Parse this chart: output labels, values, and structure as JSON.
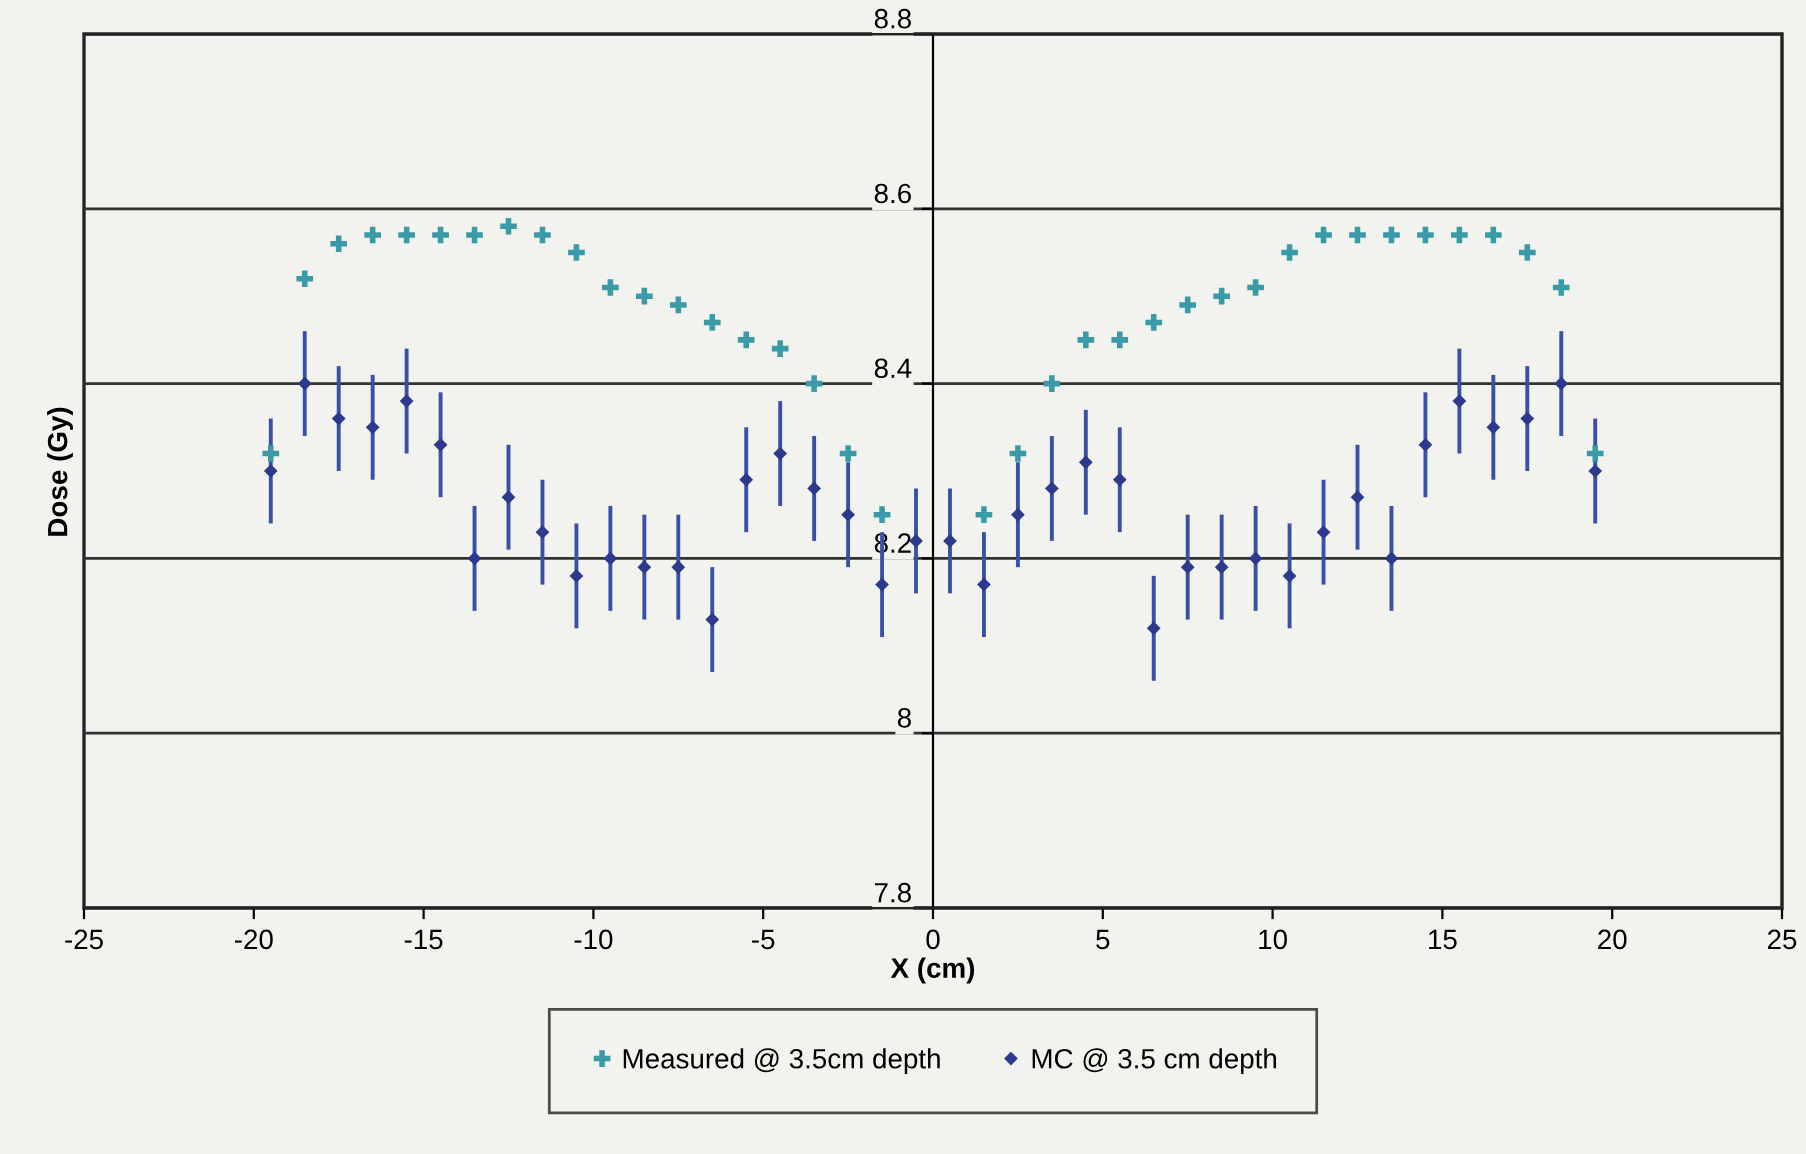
{
  "chart_data": {
    "type": "scatter",
    "xlabel": "X (cm)",
    "ylabel": "Dose (Gy)",
    "x": [
      -19.5,
      -18.5,
      -17.5,
      -16.5,
      -15.5,
      -14.5,
      -13.5,
      -12.5,
      -11.5,
      -10.5,
      -9.5,
      -8.5,
      -7.5,
      -6.5,
      -5.5,
      -4.5,
      -3.5,
      -2.5,
      -1.5,
      -0.5,
      0.5,
      1.5,
      2.5,
      3.5,
      4.5,
      5.5,
      6.5,
      7.5,
      8.5,
      9.5,
      10.5,
      11.5,
      12.5,
      13.5,
      14.5,
      15.5,
      16.5,
      17.5,
      18.5,
      19.5
    ],
    "series": [
      {
        "name": "Measured @ 3.5cm depth",
        "color": "#3a9aa8",
        "marker": "cross",
        "values": [
          8.32,
          8.52,
          8.56,
          8.57,
          8.57,
          8.57,
          8.57,
          8.58,
          8.57,
          8.55,
          8.51,
          8.5,
          8.49,
          8.47,
          8.45,
          8.44,
          8.4,
          8.32,
          8.25,
          null,
          null,
          8.25,
          8.32,
          8.4,
          8.45,
          8.45,
          8.47,
          8.49,
          8.5,
          8.51,
          8.55,
          8.57,
          8.57,
          8.57,
          8.57,
          8.57,
          8.57,
          8.55,
          8.51,
          8.32
        ]
      },
      {
        "name": "MC @ 3.5 cm depth",
        "color": "#2b3a8c",
        "marker": "diamond",
        "errors": [
          0.06,
          0.06,
          0.06,
          0.06,
          0.06,
          0.06,
          0.06,
          0.06,
          0.06,
          0.06,
          0.06,
          0.06,
          0.06,
          0.06,
          0.06,
          0.06,
          0.06,
          0.06,
          0.06,
          0.06,
          0.06,
          0.06,
          0.06,
          0.06,
          0.06,
          0.06,
          0.06,
          0.06,
          0.06,
          0.06,
          0.06,
          0.06,
          0.06,
          0.06,
          0.06,
          0.06,
          0.06,
          0.06,
          0.06,
          0.06
        ],
        "values": [
          8.3,
          8.4,
          8.36,
          8.35,
          8.38,
          8.33,
          8.2,
          8.27,
          8.23,
          8.18,
          8.2,
          8.19,
          8.19,
          8.13,
          8.29,
          8.32,
          8.28,
          8.25,
          8.17,
          8.22,
          8.22,
          8.17,
          8.25,
          8.28,
          8.31,
          8.29,
          8.12,
          8.19,
          8.19,
          8.2,
          8.18,
          8.23,
          8.27,
          8.2,
          8.33,
          8.38,
          8.35,
          8.36,
          8.4,
          8.3
        ]
      }
    ],
    "xlim": [
      -25,
      25
    ],
    "xticks": [
      -25,
      -20,
      -15,
      -10,
      -5,
      0,
      5,
      10,
      15,
      20,
      25
    ],
    "ylim": [
      7.8,
      8.8
    ],
    "yticks": [
      7.8,
      8,
      8.2,
      8.4,
      8.6,
      8.8
    ],
    "grid": "y",
    "legend": "bottom"
  }
}
